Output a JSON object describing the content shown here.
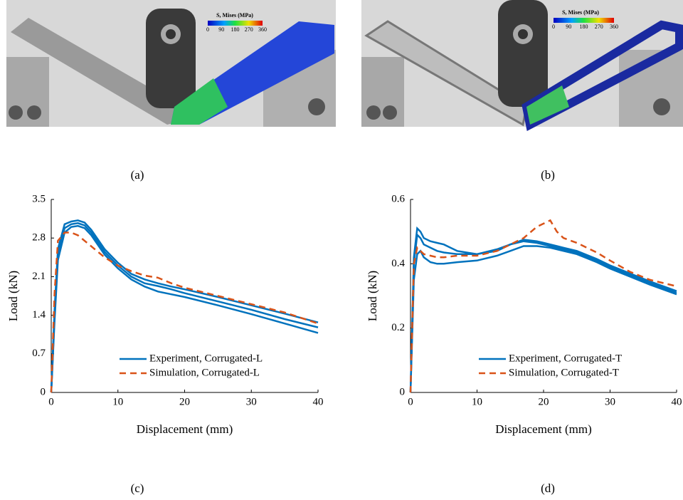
{
  "images": [
    {
      "colorbar_title": "S, Mises (MPa)",
      "colorbar_ticks": [
        0,
        90,
        180,
        270,
        360
      ],
      "caption": "(a)"
    },
    {
      "colorbar_title": "S, Mises (MPa)",
      "colorbar_ticks": [
        0,
        90,
        180,
        270,
        360
      ],
      "caption": "(b)"
    }
  ],
  "chart_data": [
    {
      "type": "line",
      "caption": "(c)",
      "xlabel": "Displacement (mm)",
      "ylabel": "Load (kN)",
      "xlim": [
        0,
        40
      ],
      "xticks": [
        0,
        10,
        20,
        30,
        40
      ],
      "ylim": [
        0,
        3.5
      ],
      "yticks": [
        0,
        0.7,
        1.4,
        2.1,
        2.8,
        3.5
      ],
      "legend": "lower right",
      "x": [
        0,
        0.5,
        1,
        2,
        3,
        4,
        5,
        6,
        8,
        10,
        12,
        14,
        16,
        18,
        20,
        25,
        30,
        35,
        40
      ],
      "series": [
        {
          "name": "Experiment, Corrugated-L",
          "color": "#0072BD",
          "dash": false,
          "values": [
            [
              0,
              1.5,
              2.6,
              3.05,
              3.1,
              3.12,
              3.08,
              2.95,
              2.6,
              2.35,
              2.15,
              2.05,
              1.98,
              1.92,
              1.87,
              1.73,
              1.58,
              1.43,
              1.27
            ],
            [
              0,
              1.4,
              2.5,
              2.98,
              3.05,
              3.07,
              3.03,
              2.9,
              2.55,
              2.3,
              2.1,
              1.98,
              1.93,
              1.87,
              1.8,
              1.65,
              1.5,
              1.33,
              1.18
            ],
            [
              0,
              1.3,
              2.4,
              2.9,
              3.0,
              3.02,
              2.98,
              2.85,
              2.5,
              2.25,
              2.05,
              1.92,
              1.83,
              1.78,
              1.73,
              1.58,
              1.42,
              1.25,
              1.08
            ]
          ]
        },
        {
          "name": "Simulation, Corrugated-L",
          "color": "#D95319",
          "dash": true,
          "values": [
            [
              0,
              1.8,
              2.75,
              2.9,
              2.9,
              2.85,
              2.75,
              2.65,
              2.45,
              2.3,
              2.2,
              2.12,
              2.08,
              1.98,
              1.9,
              1.75,
              1.6,
              1.45,
              1.25
            ]
          ]
        }
      ]
    },
    {
      "type": "line",
      "caption": "(d)",
      "xlabel": "Displacement (mm)",
      "ylabel": "Load (kN)",
      "xlim": [
        0,
        40
      ],
      "xticks": [
        0,
        10,
        20,
        30,
        40
      ],
      "ylim": [
        0,
        0.6
      ],
      "yticks": [
        0,
        0.2,
        0.4,
        0.6
      ],
      "legend": "lower right",
      "x": [
        0,
        0.5,
        1,
        1.5,
        2,
        3,
        4,
        5,
        7,
        10,
        13,
        15,
        17,
        19,
        21,
        22,
        23,
        25,
        28,
        30,
        33,
        36,
        38,
        40
      ],
      "series": [
        {
          "name": "Experiment, Corrugated-T",
          "color": "#0072BD",
          "dash": false,
          "values": [
            [
              0,
              0.42,
              0.51,
              0.5,
              0.48,
              0.47,
              0.465,
              0.46,
              0.44,
              0.43,
              0.445,
              0.46,
              0.475,
              0.47,
              0.46,
              0.455,
              0.45,
              0.44,
              0.415,
              0.395,
              0.37,
              0.345,
              0.33,
              0.315
            ],
            [
              0,
              0.4,
              0.49,
              0.48,
              0.46,
              0.45,
              0.44,
              0.435,
              0.43,
              0.43,
              0.44,
              0.46,
              0.47,
              0.465,
              0.455,
              0.45,
              0.445,
              0.435,
              0.41,
              0.39,
              0.365,
              0.34,
              0.325,
              0.31
            ],
            [
              0,
              0.35,
              0.43,
              0.44,
              0.42,
              0.405,
              0.4,
              0.4,
              0.405,
              0.41,
              0.425,
              0.44,
              0.455,
              0.455,
              0.45,
              0.445,
              0.44,
              0.43,
              0.405,
              0.385,
              0.36,
              0.335,
              0.32,
              0.305
            ]
          ]
        },
        {
          "name": "Simulation, Corrugated-T",
          "color": "#D95319",
          "dash": true,
          "values": [
            [
              0,
              0.4,
              0.45,
              0.44,
              0.43,
              0.425,
              0.42,
              0.42,
              0.425,
              0.425,
              0.44,
              0.46,
              0.48,
              0.515,
              0.535,
              0.5,
              0.48,
              0.465,
              0.435,
              0.41,
              0.375,
              0.35,
              0.34,
              0.33
            ]
          ]
        }
      ]
    }
  ]
}
